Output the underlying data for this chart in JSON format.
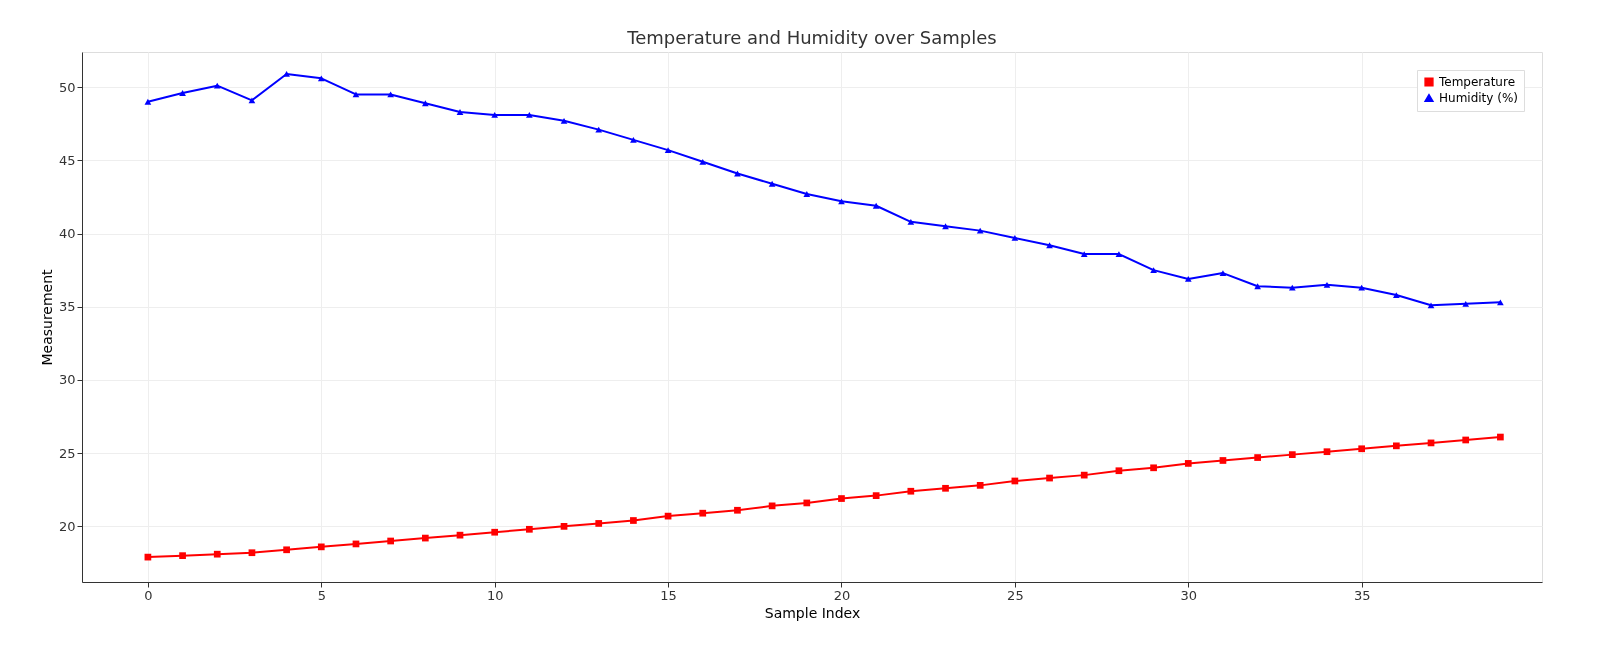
{
  "chart_data": {
    "type": "line",
    "title": "Temperature and Humidity over Samples",
    "xlabel": "Sample Index",
    "ylabel": "Measurement",
    "x": [
      0,
      1,
      2,
      3,
      4,
      5,
      6,
      7,
      8,
      9,
      10,
      11,
      12,
      13,
      14,
      15,
      16,
      17,
      18,
      19,
      20,
      21,
      22,
      23,
      24,
      25,
      26,
      27,
      28,
      29,
      30,
      31,
      32,
      33,
      34,
      35,
      36,
      37,
      38,
      39
    ],
    "series": [
      {
        "name": "Temperature",
        "color": "#ff0000",
        "marker": "square",
        "values": [
          17.9,
          18.0,
          18.1,
          18.2,
          18.4,
          18.6,
          18.8,
          19.0,
          19.2,
          19.4,
          19.6,
          19.8,
          20.0,
          20.2,
          20.4,
          20.7,
          20.9,
          21.1,
          21.4,
          21.6,
          21.9,
          22.1,
          22.4,
          22.6,
          22.8,
          23.1,
          23.3,
          23.5,
          23.8,
          24.0,
          24.3,
          24.5,
          24.7,
          24.9,
          25.1,
          25.3,
          25.5,
          25.7,
          25.9,
          26.1
        ]
      },
      {
        "name": "Humidity (%)",
        "color": "#0000ff",
        "marker": "triangle",
        "values": [
          49.0,
          49.6,
          50.1,
          49.1,
          50.9,
          50.6,
          49.5,
          49.5,
          48.9,
          48.3,
          48.1,
          48.1,
          47.7,
          47.1,
          46.4,
          45.7,
          44.9,
          44.1,
          43.4,
          42.7,
          42.2,
          41.9,
          40.8,
          40.5,
          40.2,
          39.7,
          39.2,
          38.6,
          38.6,
          37.5,
          36.9,
          37.3,
          36.4,
          36.3,
          36.5,
          36.3,
          35.8,
          35.1,
          35.2,
          35.3
        ]
      }
    ],
    "xlim": [
      -1.9,
      40.2
    ],
    "xticks": [
      0,
      5,
      10,
      15,
      20,
      25,
      30,
      35
    ],
    "ylim": [
      16.2,
      52.4
    ],
    "yticks": [
      20,
      25,
      30,
      35,
      40,
      45,
      50
    ],
    "grid": true,
    "legend": "top right",
    "line_style": "solid"
  }
}
